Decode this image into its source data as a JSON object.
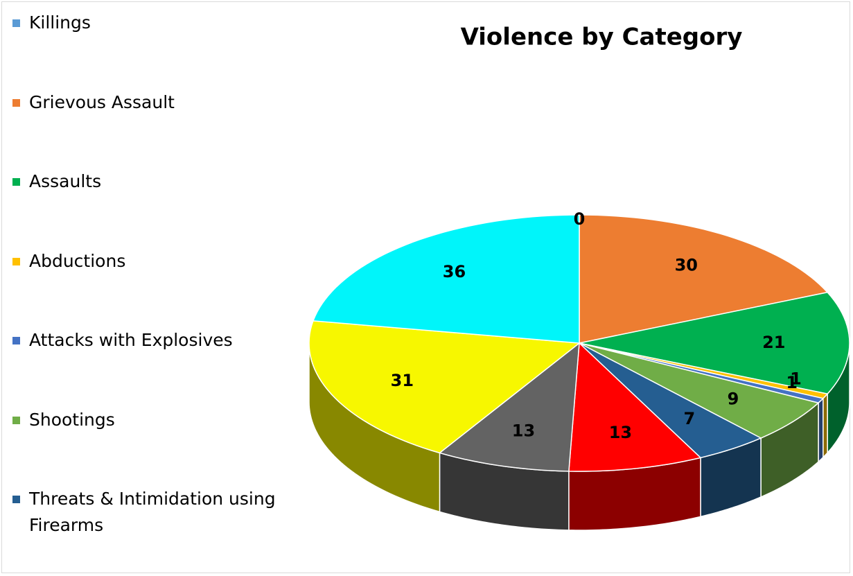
{
  "chart_data": {
    "type": "pie3d",
    "title": "Violence by Category",
    "categories": [
      "Killings",
      "Grievous Assault",
      "Assaults",
      "Abductions",
      "Attacks with Explosives",
      "Shootings",
      "Threats & Intimidation using Firearms",
      null,
      null,
      null,
      null
    ],
    "values": [
      0,
      30,
      21,
      1,
      1,
      9,
      7,
      13,
      13,
      31,
      36
    ],
    "colors": [
      "#5b9bd5",
      "#ed7d31",
      "#00b050",
      "#ffc000",
      "#4472c4",
      "#70ad47",
      "#255e91",
      "#ff0000",
      "#636363",
      "#f7f700",
      "#00f5fa"
    ],
    "legend": "left"
  }
}
